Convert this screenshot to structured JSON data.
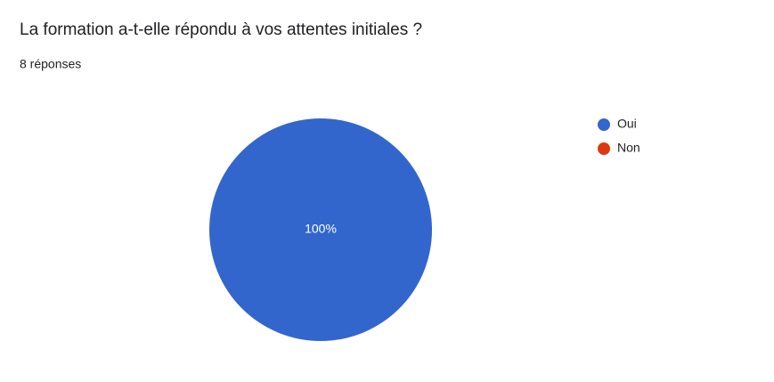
{
  "chart_data": {
    "type": "pie",
    "title": "La formation a-t-elle répondu à vos attentes initiales ?",
    "subtitle": "8 réponses",
    "categories": [
      "Oui",
      "Non"
    ],
    "values": [
      100,
      0
    ],
    "value_labels": [
      "100%",
      null
    ],
    "colors": [
      "#3366cc",
      "#dc3912"
    ],
    "legend": "right"
  }
}
